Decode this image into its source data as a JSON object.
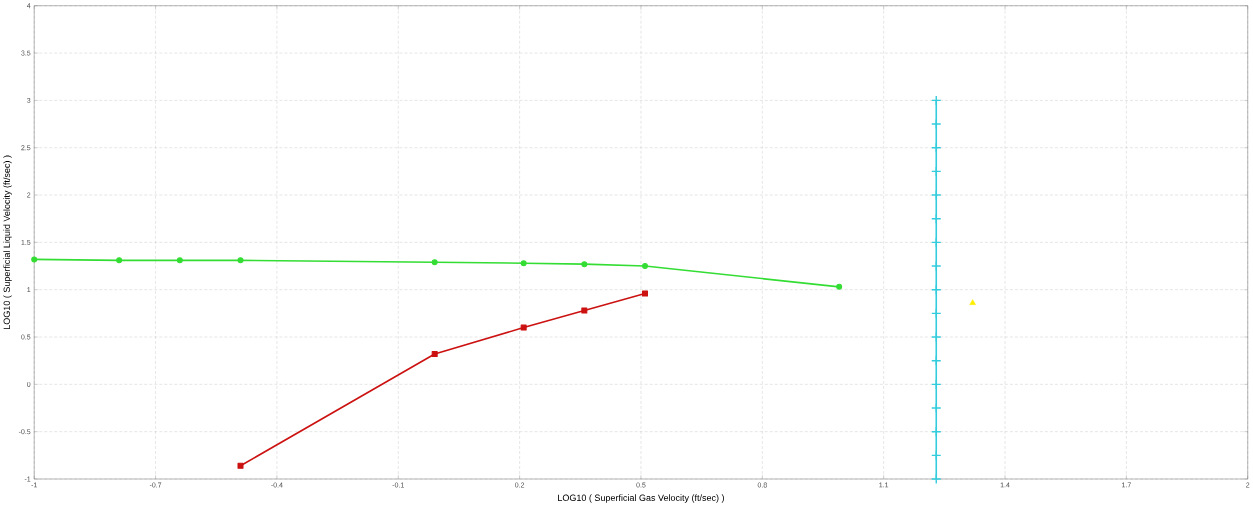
{
  "chart_data": {
    "type": "line",
    "xlabel": "LOG10 ( Superficial Gas Velocity  (ft/sec) )",
    "ylabel": "LOG10 ( Superficial Liquid Velocity  (ft/sec) )",
    "xlim": [
      -1,
      2
    ],
    "ylim": [
      -1,
      4
    ],
    "xticks": [
      -1,
      -0.7,
      -0.4,
      -0.1,
      0.2,
      0.5,
      0.8,
      1.1,
      1.4,
      1.7,
      2
    ],
    "yticks": [
      -1,
      -0.5,
      0,
      0.5,
      1,
      1.5,
      2,
      2.5,
      3,
      3.5,
      4
    ],
    "grid": true,
    "series": [
      {
        "color": "#33dd33",
        "marker": "circle",
        "x": [
          -1,
          -0.79,
          -0.64,
          -0.49,
          -0.01,
          0.21,
          0.36,
          0.51,
          0.99
        ],
        "values": [
          1.32,
          1.31,
          1.31,
          1.31,
          1.29,
          1.28,
          1.27,
          1.25,
          1.03
        ]
      },
      {
        "color": "#cc1111",
        "marker": "square",
        "x": [
          -0.49,
          -0.01,
          0.21,
          0.36,
          0.51
        ],
        "values": [
          -0.86,
          0.32,
          0.6,
          0.78,
          0.96
        ]
      },
      {
        "color": "#33ccdd",
        "marker": "cross",
        "x": [
          1.23,
          1.23,
          1.23,
          1.23,
          1.23,
          1.23,
          1.23,
          1.23,
          1.23,
          1.23,
          1.23,
          1.23,
          1.23,
          1.23,
          1.23,
          1.23,
          1.23
        ],
        "values": [
          3,
          2.75,
          2.5,
          2.25,
          2,
          1.75,
          1.5,
          1.25,
          1,
          0.75,
          0.5,
          0.25,
          0,
          -0.25,
          -0.5,
          -0.75,
          -1
        ]
      },
      {
        "type": "scatter",
        "color": "#ffee00",
        "marker": "triangle",
        "x": [
          1.32
        ],
        "values": [
          0.86
        ]
      }
    ]
  }
}
